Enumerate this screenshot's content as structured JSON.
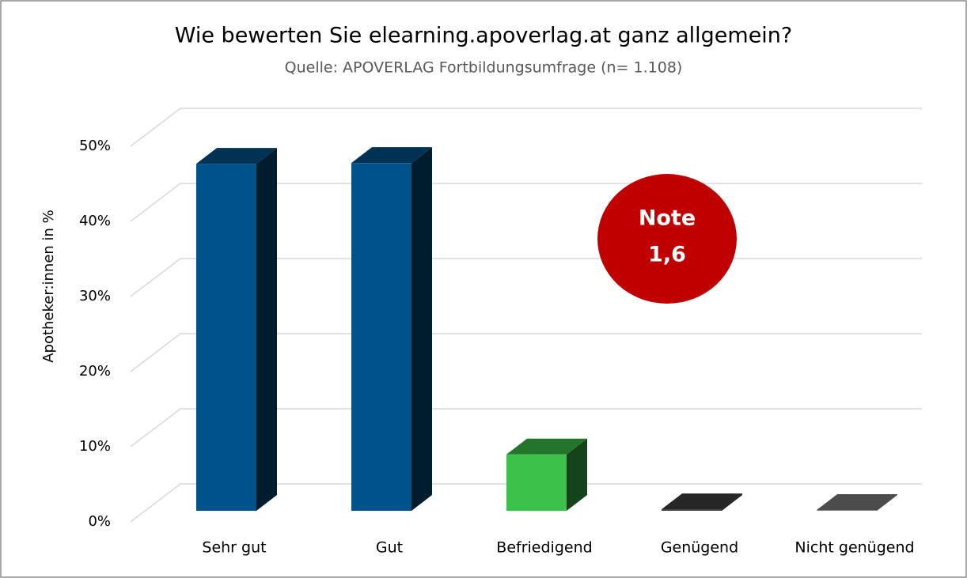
{
  "chart_data": {
    "type": "bar3d",
    "title": "Wie bewerten Sie elearning.apoverlag.at ganz allgemein?",
    "subtitle": "Quelle: APOVERLAG Fortbildungsumfrage (n= 1.108)",
    "y_label": "Apotheker:innen in %",
    "categories": [
      "Sehr gut",
      "Gut",
      "Befriedigend",
      "Genügend",
      "Nicht genügend"
    ],
    "values": [
      46.2,
      46.3,
      7.5,
      0.2,
      0.1
    ],
    "colors": [
      "#00538a",
      "#00538a",
      "#3cc24a",
      "#404040",
      "#7f7f7f"
    ],
    "ylim": [
      0,
      50
    ],
    "yticks": [
      {
        "value": 0,
        "label": "0%"
      },
      {
        "value": 10,
        "label": "10%"
      },
      {
        "value": 20,
        "label": "20%"
      },
      {
        "value": 30,
        "label": "30%"
      },
      {
        "value": 40,
        "label": "40%"
      },
      {
        "value": 50,
        "label": "50%"
      }
    ],
    "grid": true,
    "annotation": {
      "lines": [
        "Note",
        "1,6"
      ],
      "color": "#c00000"
    }
  }
}
